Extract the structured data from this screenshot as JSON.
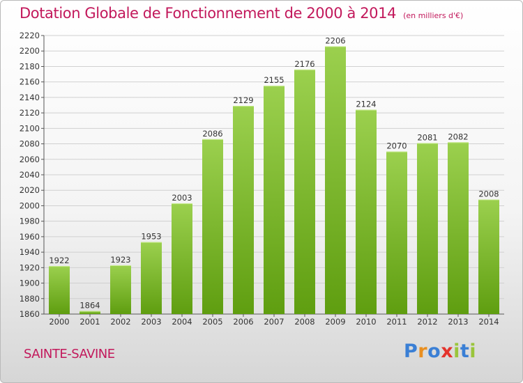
{
  "header": {
    "title": "Dotation Globale de Fonctionnement de 2000 à 2014",
    "unit": "(en milliers d'€)"
  },
  "footer": {
    "commune": "SAINTE-SAVINE",
    "logo": "Proxiti"
  },
  "colors": {
    "title": "#c2185b",
    "bar_top": "#9bd04e",
    "bar_bottom": "#5f9e10",
    "grid": "#d0d0d0",
    "logo_letters": [
      "#3a7fd5",
      "#e98f20",
      "#3a7fd5",
      "#e4332c",
      "#9ac53b",
      "#3a7fd5",
      "#9ac53b"
    ]
  },
  "chart_data": {
    "type": "bar",
    "title": "Dotation Globale de Fonctionnement de 2000 à 2014",
    "unit": "(en milliers d'€)",
    "categories": [
      "2000",
      "2001",
      "2002",
      "2003",
      "2004",
      "2005",
      "2006",
      "2007",
      "2008",
      "2009",
      "2010",
      "2011",
      "2012",
      "2013",
      "2014"
    ],
    "values": [
      1922,
      1864,
      1923,
      1953,
      2003,
      2086,
      2129,
      2155,
      2176,
      2206,
      2124,
      2070,
      2081,
      2082,
      2008
    ],
    "ylim": [
      1860,
      2220
    ],
    "yticks": [
      1860,
      1880,
      1900,
      1920,
      1940,
      1960,
      1980,
      2000,
      2020,
      2040,
      2060,
      2080,
      2100,
      2120,
      2140,
      2160,
      2180,
      2200,
      2220
    ],
    "grid": true,
    "legend": "none"
  }
}
